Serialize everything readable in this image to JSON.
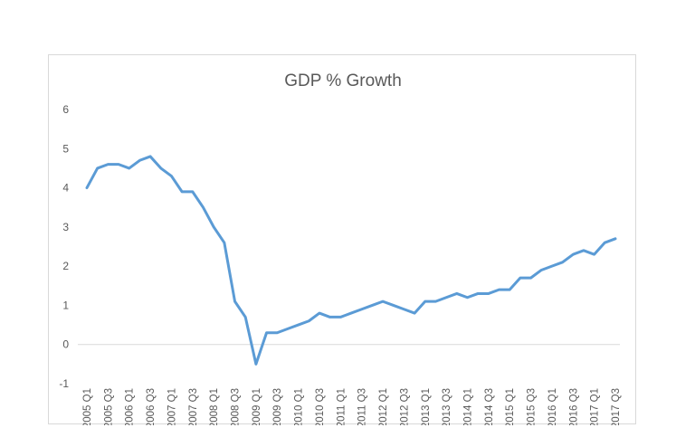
{
  "chart_data": {
    "type": "line",
    "title": "GDP % Growth",
    "xlabel": "",
    "ylabel": "",
    "ylim": [
      -1,
      6
    ],
    "yticks": [
      "-1",
      "0",
      "1",
      "2",
      "3",
      "4",
      "5",
      "6"
    ],
    "grid": false,
    "legend": "none",
    "line_color": "#5b9bd5",
    "categories": [
      "2005 Q1",
      "2005 Q2",
      "2005 Q3",
      "2005 Q4",
      "2006 Q1",
      "2006 Q2",
      "2006 Q3",
      "2006 Q4",
      "2007 Q1",
      "2007 Q2",
      "2007 Q3",
      "2007 Q4",
      "2008 Q1",
      "2008 Q2",
      "2008 Q3",
      "2008 Q4",
      "2009 Q1",
      "2009 Q2",
      "2009 Q3",
      "2009 Q4",
      "2010 Q1",
      "2010 Q2",
      "2010 Q3",
      "2010 Q4",
      "2011 Q1",
      "2011 Q2",
      "2011 Q3",
      "2011 Q4",
      "2012 Q1",
      "2012 Q2",
      "2012 Q3",
      "2012 Q4",
      "2013 Q1",
      "2013 Q2",
      "2013 Q3",
      "2013 Q4",
      "2014 Q1",
      "2014 Q2",
      "2014 Q3",
      "2014 Q4",
      "2015 Q1",
      "2015 Q2",
      "2015 Q3",
      "2015 Q4",
      "2016 Q1",
      "2016 Q2",
      "2016 Q3",
      "2016 Q4",
      "2017 Q1",
      "2017 Q2",
      "2017 Q3"
    ],
    "tick_labels": [
      "2005 Q1",
      "2005 Q3",
      "2006 Q1",
      "2006 Q3",
      "2007 Q1",
      "2007 Q3",
      "2008 Q1",
      "2008 Q3",
      "2009 Q1",
      "2009 Q3",
      "2010 Q1",
      "2010 Q3",
      "2011 Q1",
      "2011 Q3",
      "2012 Q1",
      "2012 Q3",
      "2013 Q1",
      "2013 Q3",
      "2014 Q1",
      "2014 Q3",
      "2015 Q1",
      "2015 Q3",
      "2016 Q1",
      "2016 Q3",
      "2017 Q1",
      "2017 Q3"
    ],
    "series": [
      {
        "values": [
          4.0,
          4.5,
          4.6,
          4.6,
          4.5,
          4.7,
          4.8,
          4.5,
          4.3,
          3.9,
          3.9,
          3.5,
          3.0,
          2.6,
          1.1,
          0.7,
          -0.5,
          0.3,
          0.3,
          0.4,
          0.5,
          0.6,
          0.8,
          0.7,
          0.7,
          0.8,
          0.9,
          1.0,
          1.1,
          1.0,
          0.9,
          0.8,
          1.1,
          1.1,
          1.2,
          1.3,
          1.2,
          1.3,
          1.3,
          1.4,
          1.4,
          1.7,
          1.7,
          1.9,
          2.0,
          2.1,
          2.3,
          2.4,
          2.3,
          2.6,
          2.7
        ]
      }
    ]
  }
}
